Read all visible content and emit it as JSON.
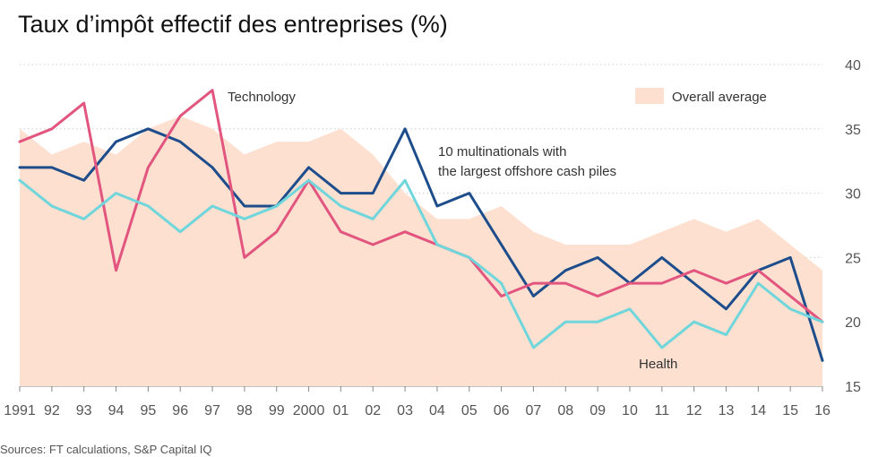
{
  "title": "Taux d’impôt effectif des entreprises (%)",
  "source": "Sources: FT calculations, S&P Capital IQ",
  "chart_data": {
    "type": "line",
    "title": "Taux d’impôt effectif des entreprises (%)",
    "x_tick_labels": [
      "1991",
      "92",
      "93",
      "94",
      "95",
      "96",
      "97",
      "98",
      "99",
      "2000",
      "01",
      "02",
      "03",
      "04",
      "05",
      "06",
      "07",
      "08",
      "09",
      "10",
      "11",
      "12",
      "13",
      "14",
      "15",
      "16"
    ],
    "x": [
      1991,
      1992,
      1993,
      1994,
      1995,
      1996,
      1997,
      1998,
      1999,
      2000,
      2001,
      2002,
      2003,
      2004,
      2005,
      2006,
      2007,
      2008,
      2009,
      2010,
      2011,
      2012,
      2013,
      2014,
      2015,
      2016
    ],
    "ylim": [
      15,
      40
    ],
    "y_ticks": [
      15,
      20,
      25,
      30,
      35,
      40
    ],
    "y_axis_side": "right",
    "grid": true,
    "legend": "top-right",
    "area": {
      "name": "Overall average",
      "color": "#fde0d0",
      "values": [
        35,
        33,
        34,
        33,
        35,
        36,
        35,
        33,
        34,
        34,
        35,
        33,
        30,
        28,
        28,
        29,
        27,
        26,
        26,
        26,
        27,
        28,
        27,
        28,
        26,
        24
      ]
    },
    "series": [
      {
        "name": "10 multinationals with the largest offshore cash piles",
        "color": "#1e4d8c",
        "values": [
          32,
          32,
          31,
          34,
          35,
          34,
          32,
          29,
          29,
          32,
          30,
          30,
          35,
          29,
          30,
          26,
          22,
          24,
          25,
          23,
          25,
          23,
          21,
          24,
          25,
          17
        ]
      },
      {
        "name": "Technology",
        "color": "#e2557f",
        "values": [
          34,
          35,
          37,
          24,
          32,
          36,
          38,
          25,
          27,
          31,
          27,
          26,
          27,
          26,
          25,
          22,
          23,
          23,
          22,
          23,
          23,
          24,
          23,
          24,
          22,
          20
        ]
      },
      {
        "name": "Health",
        "color": "#6fd6dc",
        "values": [
          31,
          29,
          28,
          30,
          29,
          27,
          29,
          28,
          29,
          31,
          29,
          28,
          31,
          26,
          25,
          23,
          18,
          20,
          20,
          21,
          18,
          20,
          19,
          23,
          21,
          20
        ]
      }
    ],
    "annotations": {
      "technology": "Technology",
      "multinationals_line1": "10 multinationals with",
      "multinationals_line2": "the largest offshore cash piles",
      "health": "Health",
      "legend_area": "Overall average"
    }
  }
}
